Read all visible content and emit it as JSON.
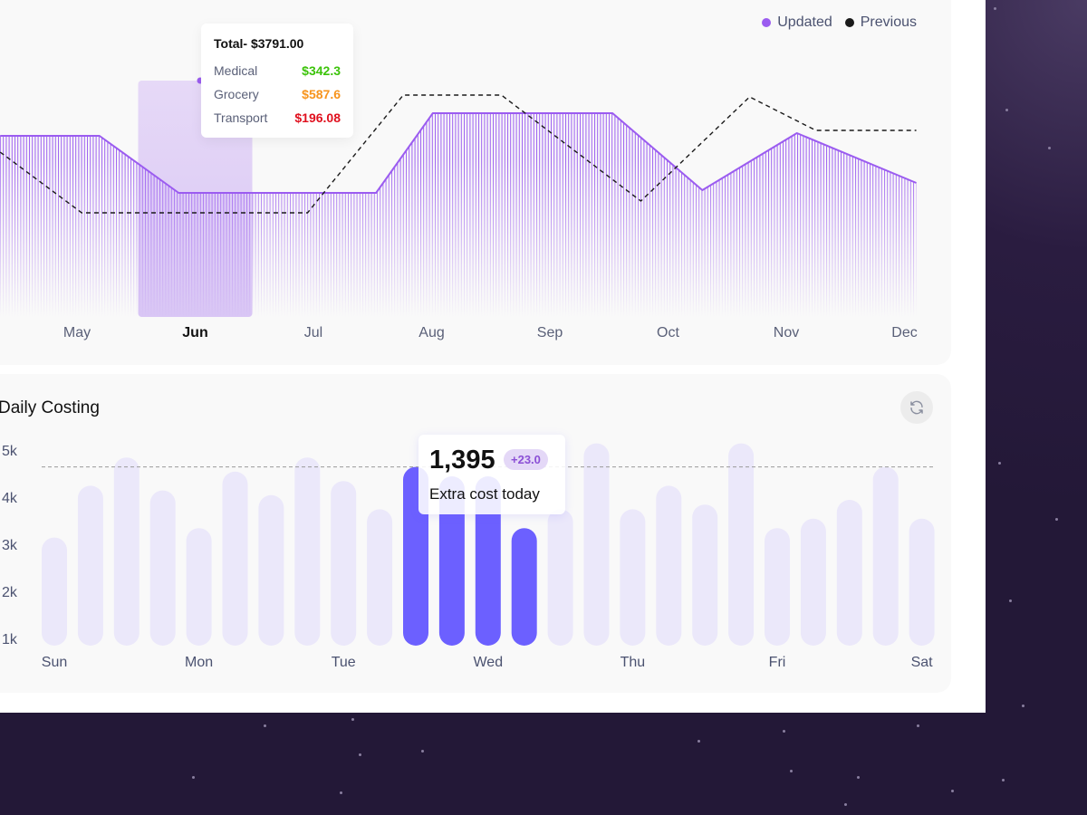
{
  "colors": {
    "updated": "#9b5cf0",
    "previous": "#1a1a1a",
    "active_bar": "#6c60ff",
    "inactive_bar": "#ebe8fa",
    "highlight_band": "#e6d9f7",
    "medical": "#3cc30a",
    "grocery": "#f7941d",
    "transport": "#e0101e",
    "background": "#231837"
  },
  "chart_data": [
    {
      "type": "area",
      "legend": {
        "position": "top-right",
        "items": [
          {
            "label": "Updated",
            "color": "#9b5cf0"
          },
          {
            "label": "Previous",
            "color": "#1a1a1a"
          }
        ]
      },
      "x_tick_labels": [
        "May",
        "Jun",
        "Jul",
        "Aug",
        "Sep",
        "Oct",
        "Nov",
        "Dec"
      ],
      "x_ticks": [
        5,
        6,
        7,
        8,
        9,
        10,
        11,
        12
      ],
      "active_month": "Jun",
      "x_range": [
        4.35,
        12.1
      ],
      "y_range": [
        0,
        300
      ],
      "grid": false,
      "series": [
        {
          "name": "Updated",
          "style": "hatched-area",
          "points": [
            [
              4.35,
              200
            ],
            [
              5.19,
              200
            ],
            [
              5.86,
              137
            ],
            [
              7.53,
              137
            ],
            [
              8.01,
              225
            ],
            [
              9.53,
              225
            ],
            [
              10.29,
              140
            ],
            [
              11.09,
              203
            ],
            [
              12.1,
              148
            ]
          ]
        },
        {
          "name": "Previous",
          "style": "dashed-line",
          "points": [
            [
              4.35,
              182
            ],
            [
              5.04,
              115
            ],
            [
              6.95,
              115
            ],
            [
              7.76,
              245
            ],
            [
              8.59,
              245
            ],
            [
              9.77,
              128
            ],
            [
              10.69,
              243
            ],
            [
              11.25,
              206
            ],
            [
              12.1,
              206
            ]
          ]
        }
      ],
      "tooltip": {
        "total": "Total- $3791.00",
        "rows": [
          {
            "label": "Medical",
            "value": "$342.3",
            "color": "#3cc30a"
          },
          {
            "label": "Grocery",
            "value": "$587.6",
            "color": "#f7941d"
          },
          {
            "label": "Transport",
            "value": "$196.08",
            "color": "#e0101e"
          }
        ]
      }
    },
    {
      "type": "bar",
      "title": "Daily Costing",
      "y_tick_labels": [
        "5k",
        "4k",
        "3k",
        "2k",
        "1k"
      ],
      "y_ticks": [
        5,
        4,
        3,
        2,
        1
      ],
      "ylim": [
        0.9,
        5.4
      ],
      "day_labels": [
        "Sun",
        "Mon",
        "Tue",
        "Wed",
        "Thu",
        "Fri",
        "Sat"
      ],
      "values": [
        3.2,
        4.3,
        4.9,
        4.2,
        3.4,
        4.6,
        4.1,
        4.9,
        4.4,
        3.8,
        4.7,
        4.5,
        4.5,
        3.4,
        3.8,
        5.2,
        3.8,
        4.3,
        3.9,
        5.2,
        3.4,
        3.6,
        4.0,
        4.7,
        3.6
      ],
      "active_range": [
        10,
        14
      ],
      "reference_line": 4.7,
      "tooltip": {
        "value": "1,395",
        "change": "+23.0",
        "label": "Extra cost today"
      }
    }
  ]
}
